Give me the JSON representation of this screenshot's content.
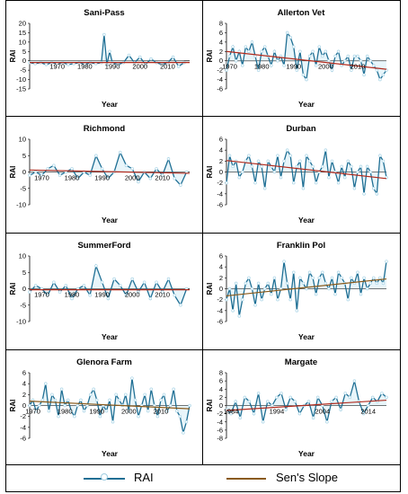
{
  "colors": {
    "rai_line": "#1f6f94",
    "rai_marker": "#a9d4e6",
    "slope": "#b02a1d",
    "slope_alt": "#8a5a1a",
    "fill": "#d9eef7"
  },
  "legend": {
    "rai_label": "RAI",
    "slope_label": "Sen's Slope"
  },
  "chart_data": [
    {
      "type": "line",
      "title": "Sani-Pass",
      "xlabel": "Year",
      "ylabel": "RAI",
      "ylim": [
        -15,
        20
      ],
      "yticks": [
        "20",
        "15",
        "10",
        "5",
        "0",
        "-5",
        "-10",
        "-15"
      ],
      "ytick_values": [
        20,
        15,
        10,
        5,
        0,
        -5,
        -10,
        -15
      ],
      "xlim": [
        1960,
        2018
      ],
      "xticks": [
        "1970",
        "1980",
        "1990",
        "2000",
        "2010"
      ],
      "xtick_values": [
        1970,
        1980,
        1990,
        2000,
        2010
      ],
      "x": [
        1960,
        1962,
        1964,
        1966,
        1968,
        1970,
        1972,
        1974,
        1976,
        1978,
        1980,
        1982,
        1984,
        1986,
        1987,
        1988,
        1989,
        1990,
        1992,
        1994,
        1996,
        1998,
        2000,
        2002,
        2004,
        2006,
        2008,
        2010,
        2012,
        2014,
        2016
      ],
      "values": [
        -1,
        -1.5,
        -1,
        -2,
        -1,
        -1.5,
        -1,
        -2,
        -1.5,
        -1,
        -2,
        -1,
        -1.5,
        -1,
        14,
        -2,
        5,
        -1,
        -2,
        -1,
        3,
        -1,
        2,
        -2,
        1,
        -1,
        -2,
        -1,
        2,
        -3,
        -1
      ],
      "slope": {
        "y_start": -0.9,
        "y_end": -0.9,
        "color": "slope"
      }
    },
    {
      "type": "line",
      "title": "Allerton Vet",
      "xlabel": "Year",
      "ylabel": "RAI",
      "ylim": [
        -6,
        8
      ],
      "yticks": [
        "8",
        "6",
        "4",
        "2",
        "0",
        "-2",
        "-4",
        "-6"
      ],
      "ytick_values": [
        8,
        6,
        4,
        2,
        0,
        -2,
        -4,
        -6
      ],
      "xlim": [
        1969,
        2019
      ],
      "xticks": [
        "1970",
        "1980",
        "1990",
        "2000",
        "2010"
      ],
      "xtick_values": [
        1970,
        1980,
        1990,
        2000,
        2010
      ],
      "x": [
        1969,
        1970,
        1971,
        1972,
        1973,
        1974,
        1975,
        1976,
        1977,
        1978,
        1979,
        1980,
        1981,
        1982,
        1983,
        1984,
        1985,
        1986,
        1987,
        1988,
        1989,
        1990,
        1991,
        1992,
        1993,
        1994,
        1995,
        1996,
        1997,
        1998,
        1999,
        2000,
        2001,
        2002,
        2003,
        2004,
        2005,
        2006,
        2007,
        2008,
        2009,
        2010,
        2011,
        2012,
        2013,
        2014,
        2015,
        2016,
        2017,
        2018,
        2019
      ],
      "values": [
        -2,
        1,
        3,
        0,
        2,
        -1,
        3,
        2,
        4,
        1,
        -2,
        2,
        3,
        1,
        -1,
        2,
        0,
        1,
        -1,
        6,
        5,
        3,
        -2,
        2,
        -3,
        -4,
        1,
        2,
        -1,
        3,
        1,
        2,
        0,
        -2,
        1,
        2,
        -1,
        0,
        1,
        -2,
        1,
        1,
        0,
        -3,
        1,
        0,
        -1,
        -2,
        -4,
        -3,
        -2
      ],
      "slope": {
        "y_start": 2.0,
        "y_end": -1.8,
        "color": "slope"
      }
    },
    {
      "type": "line",
      "title": "Richmond",
      "xlabel": "Year",
      "ylabel": "RAI",
      "ylim": [
        -10,
        10
      ],
      "yticks": [
        "10",
        "5",
        "0",
        "-5",
        "-10"
      ],
      "ytick_values": [
        10,
        5,
        0,
        -5,
        -10
      ],
      "xlim": [
        1966,
        2019
      ],
      "xticks": [
        "1970",
        "1980",
        "1990",
        "2000",
        "2010"
      ],
      "xtick_values": [
        1970,
        1980,
        1990,
        2000,
        2010
      ],
      "x": [
        1966,
        1968,
        1970,
        1972,
        1974,
        1976,
        1978,
        1980,
        1982,
        1984,
        1986,
        1988,
        1990,
        1992,
        1994,
        1996,
        1998,
        2000,
        2002,
        2004,
        2006,
        2008,
        2010,
        2012,
        2014,
        2016,
        2018
      ],
      "values": [
        -1,
        0,
        -1,
        1,
        2,
        -1,
        0,
        1,
        -2,
        0,
        -1,
        5,
        1,
        -2,
        0,
        6,
        2,
        1,
        -3,
        0,
        -2,
        1,
        -1,
        4,
        -2,
        -4,
        0
      ],
      "slope": {
        "y_start": 0.6,
        "y_end": -0.4,
        "color": "slope"
      }
    },
    {
      "type": "line",
      "title": "Durban",
      "xlabel": "Year",
      "ylabel": "RAI",
      "ylim": [
        -6,
        6
      ],
      "yticks": [
        "6",
        "4",
        "2",
        "0",
        "-2",
        "-4",
        "-6"
      ],
      "ytick_values": [
        6,
        4,
        2,
        0,
        -2,
        -4,
        -6
      ],
      "xlim": [
        1969,
        2019
      ],
      "xticks": [],
      "xtick_values": [],
      "x": [
        1969,
        1970,
        1971,
        1972,
        1973,
        1974,
        1975,
        1976,
        1977,
        1978,
        1979,
        1980,
        1981,
        1982,
        1983,
        1984,
        1985,
        1986,
        1987,
        1988,
        1989,
        1990,
        1991,
        1992,
        1993,
        1994,
        1995,
        1996,
        1997,
        1998,
        1999,
        2000,
        2001,
        2002,
        2003,
        2004,
        2005,
        2006,
        2007,
        2008,
        2009,
        2010,
        2011,
        2012,
        2013,
        2014,
        2015,
        2016,
        2017,
        2018,
        2019
      ],
      "values": [
        -2,
        3,
        1,
        2,
        -1,
        0,
        2,
        3,
        1,
        -2,
        2,
        1,
        -3,
        2,
        1,
        0,
        3,
        -1,
        2,
        4,
        3,
        -2,
        1,
        2,
        -3,
        3,
        2,
        1,
        -2,
        0,
        1,
        4,
        -1,
        2,
        0,
        -2,
        1,
        -1,
        2,
        1,
        -3,
        0,
        1,
        -4,
        1,
        0,
        -3,
        -4,
        3,
        2,
        -1
      ],
      "slope": {
        "y_start": 2.1,
        "y_end": -1.2,
        "color": "slope"
      }
    },
    {
      "type": "line",
      "title": "SummerFord",
      "xlabel": "Year",
      "ylabel": "RAI",
      "ylim": [
        -10,
        10
      ],
      "yticks": [
        "10",
        "5",
        "0",
        "-5",
        "-10"
      ],
      "ytick_values": [
        10,
        5,
        0,
        -5,
        -10
      ],
      "xlim": [
        1966,
        2019
      ],
      "xticks": [
        "1970",
        "1980",
        "1990",
        "2000",
        "2010"
      ],
      "xtick_values": [
        1970,
        1980,
        1990,
        2000,
        2010
      ],
      "x": [
        1966,
        1968,
        1970,
        1972,
        1974,
        1976,
        1978,
        1980,
        1982,
        1984,
        1986,
        1988,
        1990,
        1992,
        1994,
        1996,
        1998,
        2000,
        2002,
        2004,
        2006,
        2008,
        2010,
        2012,
        2014,
        2016,
        2018
      ],
      "values": [
        -1,
        1,
        0,
        -2,
        2,
        -1,
        1,
        -3,
        0,
        1,
        -2,
        7,
        2,
        -3,
        3,
        1,
        -2,
        3,
        -1,
        2,
        -3,
        2,
        -1,
        3,
        -2,
        -5,
        0
      ],
      "slope": {
        "y_start": -0.3,
        "y_end": -0.3,
        "color": "slope"
      }
    },
    {
      "type": "line",
      "title": "Franklin Pol",
      "xlabel": "Year",
      "ylabel": "RAI",
      "ylim": [
        -6,
        6
      ],
      "yticks": [
        "6",
        "4",
        "2",
        "0",
        "-2",
        "-4",
        "-6"
      ],
      "ytick_values": [
        6,
        4,
        2,
        0,
        -2,
        -4,
        -6
      ],
      "xlim": [
        1969,
        2019
      ],
      "xticks": [],
      "xtick_values": [],
      "x": [
        1969,
        1970,
        1971,
        1972,
        1973,
        1974,
        1975,
        1976,
        1977,
        1978,
        1979,
        1980,
        1981,
        1982,
        1983,
        1984,
        1985,
        1986,
        1987,
        1988,
        1989,
        1990,
        1991,
        1992,
        1993,
        1994,
        1995,
        1996,
        1997,
        1998,
        1999,
        2000,
        2001,
        2002,
        2003,
        2004,
        2005,
        2006,
        2007,
        2008,
        2009,
        2010,
        2011,
        2012,
        2013,
        2014,
        2015,
        2016,
        2017,
        2018,
        2019
      ],
      "values": [
        -2,
        0,
        -4,
        1,
        -5,
        -2,
        1,
        2,
        0,
        -3,
        1,
        -2,
        0,
        1,
        -1,
        2,
        -2,
        0,
        5,
        1,
        -2,
        3,
        -4,
        2,
        1,
        0,
        3,
        2,
        -1,
        2,
        3,
        1,
        0,
        2,
        -1,
        3,
        2,
        1,
        -2,
        2,
        1,
        3,
        -1,
        2,
        0,
        1,
        2,
        1,
        2,
        1,
        5
      ],
      "slope": {
        "y_start": -1.3,
        "y_end": 1.8,
        "color": "slope_alt"
      }
    },
    {
      "type": "line",
      "title": "Glenora Farm",
      "xlabel": "Year",
      "ylabel": "RAI",
      "ylim": [
        -6,
        6
      ],
      "yticks": [
        "6",
        "4",
        "2",
        "0",
        "-2",
        "-4",
        "-6"
      ],
      "ytick_values": [
        6,
        4,
        2,
        0,
        -2,
        -4,
        -6
      ],
      "xlim": [
        1969,
        2019
      ],
      "xticks": [
        "1970",
        "1980",
        "1990",
        "2000",
        "2010"
      ],
      "xtick_values": [
        1970,
        1980,
        1990,
        2000,
        2010
      ],
      "x": [
        1969,
        1970,
        1971,
        1972,
        1973,
        1974,
        1975,
        1976,
        1977,
        1978,
        1979,
        1980,
        1981,
        1982,
        1983,
        1984,
        1985,
        1986,
        1987,
        1988,
        1989,
        1990,
        1991,
        1992,
        1993,
        1994,
        1995,
        1996,
        1997,
        1998,
        1999,
        2000,
        2001,
        2002,
        2003,
        2004,
        2005,
        2006,
        2007,
        2008,
        2009,
        2010,
        2011,
        2012,
        2013,
        2014,
        2015,
        2016,
        2017,
        2018,
        2019
      ],
      "values": [
        0,
        1,
        -1,
        0,
        1,
        4,
        -1,
        2,
        1,
        -2,
        3,
        0,
        1,
        -1,
        -2,
        0,
        1,
        -1,
        0,
        2,
        3,
        1,
        -2,
        0,
        -1,
        1,
        -3,
        2,
        1,
        0,
        2,
        -1,
        5,
        1,
        -2,
        0,
        2,
        -1,
        3,
        0,
        -2,
        1,
        2,
        -1,
        0,
        3,
        -1,
        -2,
        -5,
        -3,
        0
      ],
      "slope": {
        "y_start": 0.8,
        "y_end": -0.6,
        "color": "slope_alt"
      }
    },
    {
      "type": "line",
      "title": "Margate",
      "xlabel": "Year",
      "ylabel": "RAI",
      "ylim": [
        -8,
        8
      ],
      "yticks": [
        "8",
        "6",
        "4",
        "2",
        "0",
        "-2",
        "-4",
        "-6",
        "-8"
      ],
      "ytick_values": [
        8,
        6,
        4,
        2,
        0,
        -2,
        -4,
        -6,
        -8
      ],
      "xlim": [
        1983,
        2018
      ],
      "xticks": [
        "1984",
        "1994",
        "2004",
        "2014"
      ],
      "xtick_values": [
        1984,
        1994,
        2004,
        2014
      ],
      "x": [
        1983,
        1984,
        1985,
        1986,
        1987,
        1988,
        1989,
        1990,
        1991,
        1992,
        1993,
        1994,
        1995,
        1996,
        1997,
        1998,
        1999,
        2000,
        2001,
        2002,
        2003,
        2004,
        2005,
        2006,
        2007,
        2008,
        2009,
        2010,
        2011,
        2012,
        2013,
        2014,
        2015,
        2016,
        2017,
        2018
      ],
      "values": [
        -1,
        -2,
        1,
        -3,
        2,
        1,
        -2,
        3,
        -4,
        1,
        0,
        2,
        3,
        -1,
        2,
        1,
        -2,
        0,
        1,
        -3,
        2,
        0,
        -4,
        1,
        2,
        -1,
        3,
        2,
        6,
        1,
        -2,
        0,
        2,
        1,
        3,
        2
      ],
      "slope": {
        "y_start": -1.2,
        "y_end": 1.3,
        "color": "slope"
      }
    }
  ]
}
